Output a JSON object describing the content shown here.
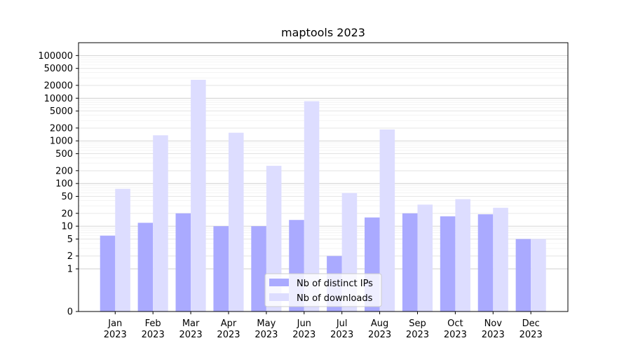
{
  "chart_data": {
    "type": "bar",
    "title": "maptools 2023",
    "xlabel": "",
    "ylabel": "",
    "yscale": "symlog",
    "ylim": [
      0,
      200000
    ],
    "grid": true,
    "legend_position": "bottom-center",
    "categories": [
      [
        "Jan",
        "2023"
      ],
      [
        "Feb",
        "2023"
      ],
      [
        "Mar",
        "2023"
      ],
      [
        "Apr",
        "2023"
      ],
      [
        "May",
        "2023"
      ],
      [
        "Jun",
        "2023"
      ],
      [
        "Jul",
        "2023"
      ],
      [
        "Aug",
        "2023"
      ],
      [
        "Sep",
        "2023"
      ],
      [
        "Oct",
        "2023"
      ],
      [
        "Nov",
        "2023"
      ],
      [
        "Dec",
        "2023"
      ]
    ],
    "yticks": [
      0,
      1,
      2,
      5,
      10,
      20,
      50,
      100,
      200,
      500,
      1000,
      2000,
      5000,
      10000,
      20000,
      50000,
      100000
    ],
    "series": [
      {
        "name": "Nb of distinct IPs",
        "color": "#aaaaff",
        "values": [
          6,
          12,
          20,
          10,
          10,
          14,
          2,
          16,
          20,
          17,
          19,
          5
        ]
      },
      {
        "name": "Nb of downloads",
        "color": "#ddddff",
        "values": [
          75,
          1350,
          27000,
          1550,
          260,
          8500,
          60,
          1850,
          32,
          43,
          27,
          5
        ]
      }
    ]
  }
}
